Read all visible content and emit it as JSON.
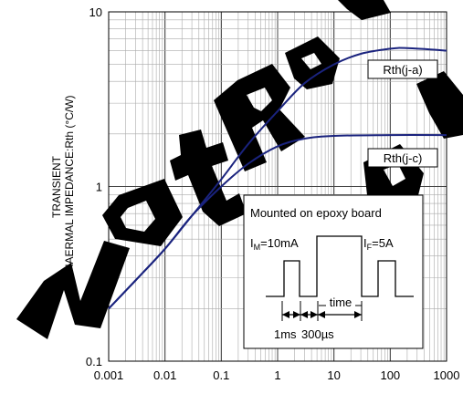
{
  "chart_data": {
    "type": "line",
    "xscale": "log",
    "yscale": "log",
    "xlim": [
      0.001,
      1000
    ],
    "ylim": [
      0.1,
      10
    ],
    "grid": true,
    "xlabel": "",
    "ylabel_lines": [
      "TRANSIENT",
      "THAERMAL IMPEDANCE:Rth (°C/W)"
    ],
    "xtick_labels": [
      "0.001",
      "0.01",
      "0.1",
      "1",
      "10",
      "100",
      "1000"
    ],
    "ytick_labels": [
      "0.1",
      "1",
      "10"
    ],
    "line_color": "#1a237e",
    "series": [
      {
        "name": "Rth(j-a)",
        "x": [
          0.001,
          0.003,
          0.01,
          0.03,
          0.1,
          0.3,
          1,
          3,
          10,
          30,
          100,
          200,
          1000
        ],
        "y": [
          0.2,
          0.29,
          0.44,
          0.68,
          1.1,
          1.75,
          2.7,
          3.9,
          5.0,
          5.75,
          6.15,
          6.2,
          6.0
        ]
      },
      {
        "name": "Rth(j-c)",
        "x": [
          0.001,
          0.003,
          0.01,
          0.03,
          0.1,
          0.3,
          1,
          3,
          10,
          100,
          1000
        ],
        "y": [
          0.2,
          0.29,
          0.44,
          0.68,
          1.0,
          1.35,
          1.7,
          1.88,
          1.95,
          1.97,
          1.97
        ]
      }
    ]
  },
  "inset": {
    "title": "Mounted on epoxy board",
    "im_label": "I",
    "im_sub": "M",
    "im_value": "=10mA",
    "if_label": "I",
    "if_sub": "F",
    "if_value": "=5A",
    "time_label": "time",
    "t1_label": "1ms",
    "t2_label": "300µs"
  },
  "watermark": {
    "color": "#000000"
  }
}
